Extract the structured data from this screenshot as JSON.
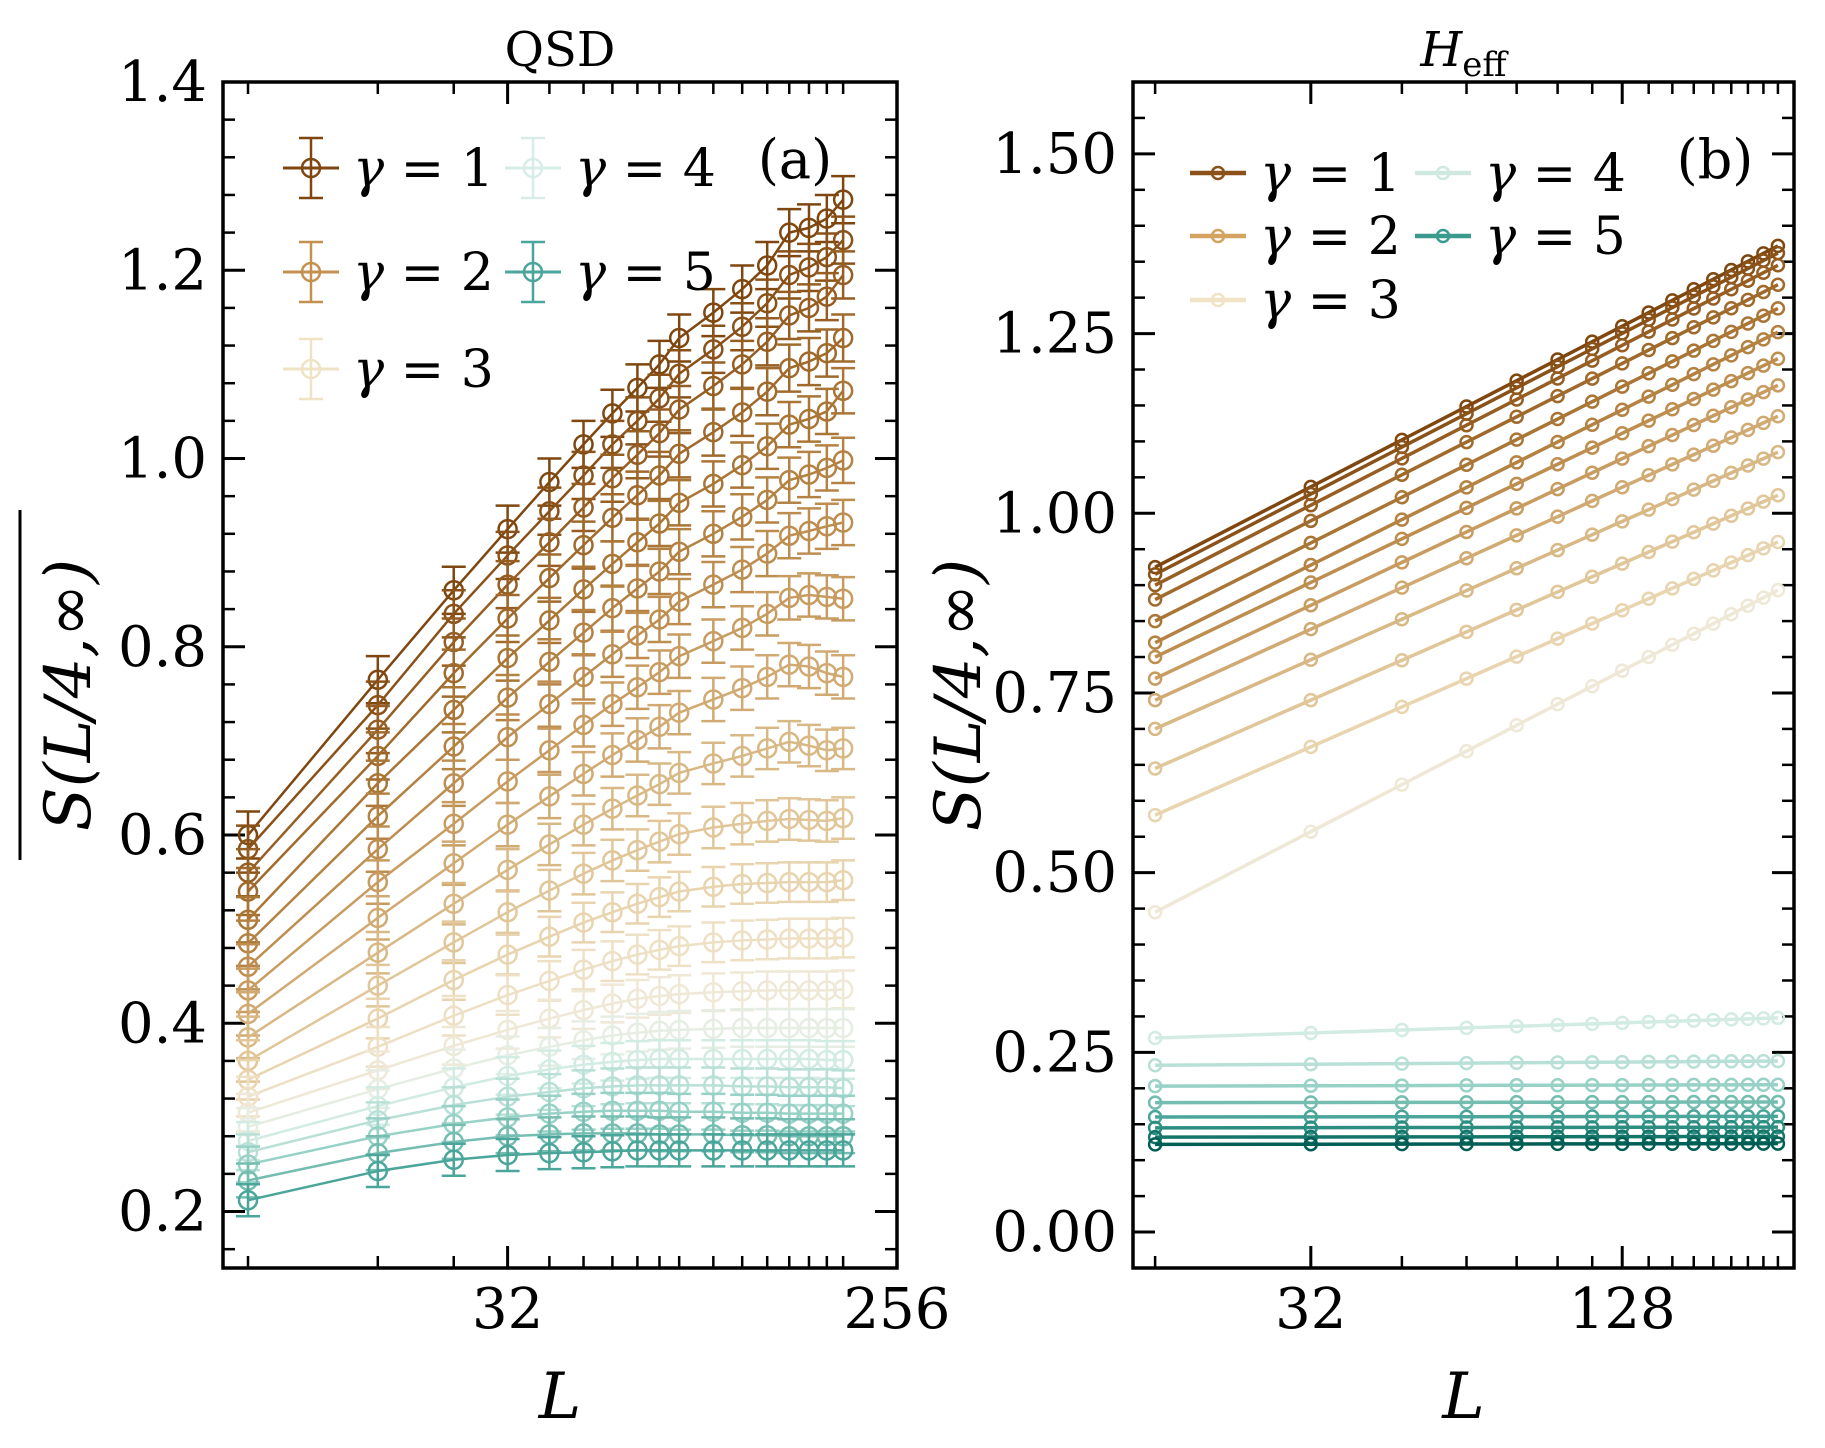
{
  "chart_data": [
    {
      "panel": "(a)",
      "type": "line",
      "title": "QSD",
      "xlabel": "L",
      "ylabel": "S(L/4,∞) (overlined)",
      "x_scale": "log2",
      "xlim": [
        7,
        256
      ],
      "ylim": [
        0.14,
        1.4
      ],
      "x_ticks": [
        32,
        256
      ],
      "x_tick_labels": [
        "32",
        "256"
      ],
      "y_ticks": [
        0.2,
        0.4,
        0.6,
        0.8,
        1.0,
        1.2,
        1.4
      ],
      "y_tick_labels": [
        "0.2",
        "0.4",
        "0.6",
        "0.8",
        "1.0",
        "1.2",
        "1.4"
      ],
      "error_bars": true,
      "x": [
        8,
        16,
        24,
        32,
        40,
        48,
        56,
        64,
        72,
        80,
        96,
        112,
        128,
        144,
        160,
        176,
        192
      ],
      "legend": {
        "placement": "top-left",
        "columns": 2,
        "entries": [
          "γ = 1",
          "γ = 2",
          "γ = 3",
          "γ = 4",
          "γ = 5"
        ]
      },
      "series": [
        {
          "values": [
            0.6,
            0.765,
            0.86,
            0.925,
            0.975,
            1.015,
            1.048,
            1.075,
            1.1,
            1.128,
            1.155,
            1.18,
            1.205,
            1.24,
            1.245,
            1.255,
            1.275
          ],
          "err": 0.025,
          "color": "#7f470f"
        },
        {
          "values": [
            0.585,
            0.738,
            0.835,
            0.897,
            0.944,
            0.982,
            1.015,
            1.04,
            1.064,
            1.09,
            1.116,
            1.14,
            1.165,
            1.195,
            1.203,
            1.214,
            1.232
          ],
          "err": 0.025,
          "color": "#8a5218"
        },
        {
          "values": [
            0.56,
            0.712,
            0.805,
            0.866,
            0.911,
            0.948,
            0.979,
            1.004,
            1.027,
            1.052,
            1.077,
            1.1,
            1.124,
            1.152,
            1.16,
            1.172,
            1.195
          ],
          "err": 0.025,
          "color": "#965e22"
        },
        {
          "values": [
            0.54,
            0.684,
            0.772,
            0.83,
            0.873,
            0.908,
            0.937,
            0.961,
            0.982,
            1.005,
            1.028,
            1.049,
            1.071,
            1.096,
            1.103,
            1.112,
            1.128
          ],
          "err": 0.025,
          "color": "#a06a2c"
        },
        {
          "values": [
            0.51,
            0.655,
            0.733,
            0.788,
            0.828,
            0.861,
            0.888,
            0.911,
            0.931,
            0.953,
            0.973,
            0.993,
            1.013,
            1.036,
            1.042,
            1.05,
            1.072
          ],
          "err": 0.024,
          "color": "#aa7636"
        },
        {
          "values": [
            0.485,
            0.62,
            0.694,
            0.746,
            0.784,
            0.815,
            0.841,
            0.862,
            0.88,
            0.901,
            0.92,
            0.938,
            0.956,
            0.977,
            0.983,
            0.99,
            0.998
          ],
          "err": 0.024,
          "color": "#b48242"
        },
        {
          "values": [
            0.46,
            0.585,
            0.655,
            0.704,
            0.739,
            0.768,
            0.792,
            0.812,
            0.829,
            0.848,
            0.866,
            0.882,
            0.899,
            0.918,
            0.923,
            0.928,
            0.932
          ],
          "err": 0.024,
          "color": "#be8e50"
        },
        {
          "values": [
            0.435,
            0.55,
            0.612,
            0.657,
            0.69,
            0.717,
            0.739,
            0.757,
            0.773,
            0.79,
            0.806,
            0.82,
            0.835,
            0.852,
            0.855,
            0.853,
            0.851
          ],
          "err": 0.023,
          "color": "#c89c60"
        },
        {
          "values": [
            0.41,
            0.512,
            0.57,
            0.611,
            0.641,
            0.665,
            0.685,
            0.701,
            0.715,
            0.73,
            0.744,
            0.756,
            0.768,
            0.781,
            0.779,
            0.772,
            0.768
          ],
          "err": 0.023,
          "color": "#d0aa72"
        },
        {
          "values": [
            0.385,
            0.475,
            0.527,
            0.563,
            0.59,
            0.611,
            0.628,
            0.642,
            0.654,
            0.666,
            0.676,
            0.684,
            0.692,
            0.699,
            0.695,
            0.69,
            0.692
          ],
          "err": 0.022,
          "color": "#d8b884"
        },
        {
          "values": [
            0.36,
            0.44,
            0.486,
            0.518,
            0.541,
            0.559,
            0.573,
            0.584,
            0.593,
            0.601,
            0.608,
            0.612,
            0.615,
            0.617,
            0.616,
            0.615,
            0.618
          ],
          "err": 0.022,
          "color": "#e0c698"
        },
        {
          "values": [
            0.34,
            0.405,
            0.446,
            0.473,
            0.492,
            0.507,
            0.518,
            0.527,
            0.534,
            0.54,
            0.545,
            0.548,
            0.549,
            0.55,
            0.55,
            0.55,
            0.552
          ],
          "err": 0.021,
          "color": "#e8d4ae"
        },
        {
          "values": [
            0.322,
            0.375,
            0.408,
            0.43,
            0.445,
            0.457,
            0.466,
            0.473,
            0.478,
            0.482,
            0.486,
            0.488,
            0.489,
            0.49,
            0.49,
            0.49,
            0.491
          ],
          "err": 0.021,
          "color": "#eee0c4"
        },
        {
          "values": [
            0.305,
            0.35,
            0.376,
            0.393,
            0.405,
            0.414,
            0.421,
            0.426,
            0.429,
            0.431,
            0.433,
            0.434,
            0.435,
            0.435,
            0.435,
            0.435,
            0.436
          ],
          "err": 0.02,
          "color": "#f0e8d6"
        },
        {
          "values": [
            0.29,
            0.33,
            0.352,
            0.366,
            0.375,
            0.382,
            0.387,
            0.39,
            0.392,
            0.393,
            0.394,
            0.395,
            0.395,
            0.395,
            0.395,
            0.395,
            0.395
          ],
          "err": 0.02,
          "color": "#e6eee4"
        },
        {
          "values": [
            0.275,
            0.312,
            0.332,
            0.344,
            0.351,
            0.356,
            0.359,
            0.361,
            0.362,
            0.362,
            0.362,
            0.362,
            0.362,
            0.362,
            0.362,
            0.361,
            0.361
          ],
          "err": 0.02,
          "color": "#d2ebe3"
        },
        {
          "values": [
            0.263,
            0.297,
            0.313,
            0.322,
            0.327,
            0.331,
            0.333,
            0.334,
            0.334,
            0.334,
            0.334,
            0.333,
            0.333,
            0.332,
            0.332,
            0.332,
            0.331
          ],
          "err": 0.019,
          "color": "#b9e0d6"
        },
        {
          "values": [
            0.25,
            0.28,
            0.293,
            0.3,
            0.304,
            0.306,
            0.307,
            0.307,
            0.307,
            0.306,
            0.306,
            0.305,
            0.305,
            0.304,
            0.304,
            0.304,
            0.304
          ],
          "err": 0.019,
          "color": "#98d1c6"
        },
        {
          "values": [
            0.233,
            0.262,
            0.274,
            0.28,
            0.282,
            0.283,
            0.283,
            0.283,
            0.282,
            0.282,
            0.282,
            0.281,
            0.281,
            0.28,
            0.28,
            0.28,
            0.28
          ],
          "err": 0.018,
          "color": "#74bdb0"
        },
        {
          "values": [
            0.212,
            0.243,
            0.255,
            0.26,
            0.262,
            0.263,
            0.264,
            0.265,
            0.265,
            0.265,
            0.265,
            0.265,
            0.265,
            0.265,
            0.265,
            0.265,
            0.265
          ],
          "err": 0.017,
          "color": "#4aa59a"
        }
      ]
    },
    {
      "panel": "(b)",
      "type": "line",
      "title": "H_eff",
      "xlabel": "L",
      "ylabel": "S(L/4,∞)",
      "x_scale": "log2",
      "xlim": [
        14.5,
        275
      ],
      "ylim": [
        -0.05,
        1.6
      ],
      "x_ticks": [
        32,
        128
      ],
      "x_tick_labels": [
        "32",
        "128"
      ],
      "y_ticks": [
        0.0,
        0.25,
        0.5,
        0.75,
        1.0,
        1.25,
        1.5
      ],
      "y_tick_labels": [
        "0.00",
        "0.25",
        "0.50",
        "0.75",
        "1.00",
        "1.25",
        "1.50"
      ],
      "error_bars": false,
      "x": [
        16,
        32,
        48,
        64,
        80,
        96,
        112,
        128,
        144,
        160,
        176,
        192,
        208,
        224,
        240,
        256
      ],
      "legend": {
        "placement": "top-left",
        "columns": 2,
        "entries": [
          "γ = 1",
          "γ = 2",
          "γ = 3",
          "γ = 4",
          "γ = 5"
        ]
      },
      "series": [
        {
          "start": 0.925,
          "end": 1.372,
          "color": "#7f470f"
        },
        {
          "start": 0.915,
          "end": 1.362,
          "color": "#8a5218"
        },
        {
          "start": 0.9,
          "end": 1.345,
          "color": "#965e22"
        },
        {
          "start": 0.88,
          "end": 1.318,
          "color": "#a06a2c"
        },
        {
          "start": 0.85,
          "end": 1.285,
          "color": "#aa7636"
        },
        {
          "start": 0.82,
          "end": 1.252,
          "color": "#b48242"
        },
        {
          "start": 0.8,
          "end": 1.215,
          "color": "#be8e50"
        },
        {
          "start": 0.77,
          "end": 1.178,
          "color": "#c89c60"
        },
        {
          "start": 0.74,
          "end": 1.135,
          "color": "#d0aa72"
        },
        {
          "start": 0.7,
          "end": 1.085,
          "color": "#d8b884"
        },
        {
          "start": 0.645,
          "end": 1.025,
          "color": "#e0c698"
        },
        {
          "start": 0.58,
          "end": 0.96,
          "color": "#e8d4ae"
        },
        {
          "start": 0.445,
          "end": 0.893,
          "color": "#f0e8d6"
        },
        {
          "start": 0.27,
          "end": 0.298,
          "color": "#d2ebe3"
        },
        {
          "start": 0.232,
          "end": 0.238,
          "color": "#b9e0d6"
        },
        {
          "start": 0.203,
          "end": 0.205,
          "color": "#98d1c6"
        },
        {
          "start": 0.18,
          "end": 0.181,
          "color": "#74bdb0"
        },
        {
          "start": 0.16,
          "end": 0.161,
          "color": "#4aa59a"
        },
        {
          "start": 0.145,
          "end": 0.146,
          "color": "#2c8d80"
        },
        {
          "start": 0.132,
          "end": 0.133,
          "color": "#14756a"
        },
        {
          "start": 0.122,
          "end": 0.123,
          "color": "#005e54"
        }
      ]
    }
  ]
}
